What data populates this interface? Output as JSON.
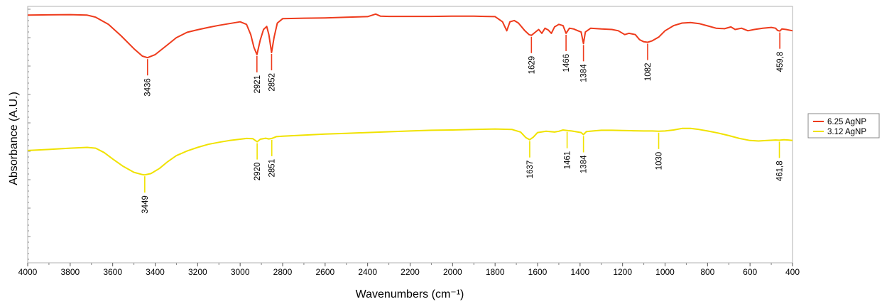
{
  "chart_data": {
    "type": "line",
    "xlabel": "Wavenumbers (cm⁻¹)",
    "ylabel": "Absorbance (A.U.)",
    "xlim": [
      4000,
      400
    ],
    "x_reversed": true,
    "x_ticks": [
      4000,
      3800,
      3600,
      3400,
      3200,
      3000,
      2800,
      2600,
      2400,
      2200,
      2000,
      1800,
      1600,
      1400,
      1200,
      1000,
      800,
      600,
      400
    ],
    "y_ticks_labeled": false,
    "ylim": [
      0,
      1
    ],
    "grid": false,
    "legend_position": "right",
    "series": [
      {
        "name": "6.25 AgNP",
        "color": "#ee3b1c",
        "points": [
          [
            4000,
            0.966
          ],
          [
            3900,
            0.967
          ],
          [
            3800,
            0.968
          ],
          [
            3720,
            0.966
          ],
          [
            3680,
            0.958
          ],
          [
            3620,
            0.93
          ],
          [
            3560,
            0.885
          ],
          [
            3500,
            0.835
          ],
          [
            3460,
            0.806
          ],
          [
            3436,
            0.8
          ],
          [
            3400,
            0.812
          ],
          [
            3350,
            0.845
          ],
          [
            3300,
            0.878
          ],
          [
            3250,
            0.899
          ],
          [
            3200,
            0.909
          ],
          [
            3150,
            0.918
          ],
          [
            3100,
            0.926
          ],
          [
            3050,
            0.933
          ],
          [
            3000,
            0.94
          ],
          [
            2970,
            0.93
          ],
          [
            2950,
            0.89
          ],
          [
            2935,
            0.84
          ],
          [
            2921,
            0.812
          ],
          [
            2905,
            0.87
          ],
          [
            2890,
            0.91
          ],
          [
            2875,
            0.922
          ],
          [
            2865,
            0.89
          ],
          [
            2852,
            0.82
          ],
          [
            2840,
            0.88
          ],
          [
            2825,
            0.935
          ],
          [
            2800,
            0.952
          ],
          [
            2700,
            0.954
          ],
          [
            2600,
            0.955
          ],
          [
            2500,
            0.958
          ],
          [
            2400,
            0.96
          ],
          [
            2362,
            0.97
          ],
          [
            2340,
            0.962
          ],
          [
            2300,
            0.961
          ],
          [
            2200,
            0.961
          ],
          [
            2100,
            0.961
          ],
          [
            2000,
            0.962
          ],
          [
            1900,
            0.962
          ],
          [
            1850,
            0.961
          ],
          [
            1800,
            0.96
          ],
          [
            1765,
            0.94
          ],
          [
            1745,
            0.905
          ],
          [
            1730,
            0.94
          ],
          [
            1710,
            0.945
          ],
          [
            1690,
            0.935
          ],
          [
            1660,
            0.905
          ],
          [
            1640,
            0.89
          ],
          [
            1629,
            0.887
          ],
          [
            1610,
            0.9
          ],
          [
            1595,
            0.91
          ],
          [
            1580,
            0.895
          ],
          [
            1565,
            0.915
          ],
          [
            1550,
            0.908
          ],
          [
            1535,
            0.895
          ],
          [
            1520,
            0.92
          ],
          [
            1500,
            0.93
          ],
          [
            1480,
            0.925
          ],
          [
            1466,
            0.895
          ],
          [
            1450,
            0.915
          ],
          [
            1430,
            0.912
          ],
          [
            1410,
            0.905
          ],
          [
            1395,
            0.9
          ],
          [
            1384,
            0.855
          ],
          [
            1375,
            0.9
          ],
          [
            1350,
            0.915
          ],
          [
            1300,
            0.912
          ],
          [
            1250,
            0.91
          ],
          [
            1220,
            0.905
          ],
          [
            1190,
            0.89
          ],
          [
            1170,
            0.895
          ],
          [
            1140,
            0.89
          ],
          [
            1120,
            0.87
          ],
          [
            1100,
            0.862
          ],
          [
            1082,
            0.86
          ],
          [
            1060,
            0.866
          ],
          [
            1030,
            0.88
          ],
          [
            1000,
            0.905
          ],
          [
            960,
            0.925
          ],
          [
            920,
            0.935
          ],
          [
            880,
            0.937
          ],
          [
            840,
            0.933
          ],
          [
            800,
            0.924
          ],
          [
            760,
            0.915
          ],
          [
            720,
            0.913
          ],
          [
            690,
            0.92
          ],
          [
            670,
            0.91
          ],
          [
            640,
            0.915
          ],
          [
            610,
            0.905
          ],
          [
            580,
            0.91
          ],
          [
            540,
            0.915
          ],
          [
            500,
            0.918
          ],
          [
            480,
            0.915
          ],
          [
            470,
            0.906
          ],
          [
            459.8,
            0.904
          ],
          [
            450,
            0.912
          ],
          [
            430,
            0.91
          ],
          [
            400,
            0.905
          ]
        ],
        "peaks": [
          {
            "x": 3436,
            "label": "3436"
          },
          {
            "x": 2921,
            "label": "2921"
          },
          {
            "x": 2852,
            "label": "2852"
          },
          {
            "x": 1629,
            "label": "1629"
          },
          {
            "x": 1466,
            "label": "1466"
          },
          {
            "x": 1384,
            "label": "1384"
          },
          {
            "x": 1082,
            "label": "1082"
          },
          {
            "x": 459.8,
            "label": "459,8"
          }
        ]
      },
      {
        "name": "3.12 AgNP",
        "color": "#f0e200",
        "points": [
          [
            4000,
            0.438
          ],
          [
            3900,
            0.442
          ],
          [
            3800,
            0.447
          ],
          [
            3720,
            0.45
          ],
          [
            3680,
            0.447
          ],
          [
            3640,
            0.43
          ],
          [
            3600,
            0.405
          ],
          [
            3550,
            0.376
          ],
          [
            3500,
            0.353
          ],
          [
            3460,
            0.344
          ],
          [
            3449,
            0.343
          ],
          [
            3420,
            0.348
          ],
          [
            3380,
            0.368
          ],
          [
            3340,
            0.395
          ],
          [
            3300,
            0.418
          ],
          [
            3250,
            0.436
          ],
          [
            3200,
            0.45
          ],
          [
            3150,
            0.462
          ],
          [
            3100,
            0.47
          ],
          [
            3050,
            0.477
          ],
          [
            3000,
            0.482
          ],
          [
            2970,
            0.485
          ],
          [
            2940,
            0.484
          ],
          [
            2920,
            0.472
          ],
          [
            2905,
            0.482
          ],
          [
            2880,
            0.486
          ],
          [
            2865,
            0.483
          ],
          [
            2851,
            0.485
          ],
          [
            2830,
            0.492
          ],
          [
            2800,
            0.494
          ],
          [
            2700,
            0.498
          ],
          [
            2600,
            0.502
          ],
          [
            2500,
            0.505
          ],
          [
            2400,
            0.508
          ],
          [
            2300,
            0.511
          ],
          [
            2200,
            0.514
          ],
          [
            2100,
            0.517
          ],
          [
            2000,
            0.518
          ],
          [
            1900,
            0.52
          ],
          [
            1800,
            0.522
          ],
          [
            1720,
            0.52
          ],
          [
            1680,
            0.51
          ],
          [
            1655,
            0.488
          ],
          [
            1637,
            0.48
          ],
          [
            1620,
            0.49
          ],
          [
            1600,
            0.508
          ],
          [
            1560,
            0.513
          ],
          [
            1520,
            0.51
          ],
          [
            1500,
            0.513
          ],
          [
            1480,
            0.518
          ],
          [
            1461,
            0.516
          ],
          [
            1440,
            0.514
          ],
          [
            1410,
            0.51
          ],
          [
            1395,
            0.508
          ],
          [
            1384,
            0.5
          ],
          [
            1370,
            0.512
          ],
          [
            1330,
            0.515
          ],
          [
            1300,
            0.517
          ],
          [
            1250,
            0.517
          ],
          [
            1200,
            0.516
          ],
          [
            1150,
            0.515
          ],
          [
            1100,
            0.514
          ],
          [
            1060,
            0.514
          ],
          [
            1030,
            0.513
          ],
          [
            1000,
            0.514
          ],
          [
            960,
            0.518
          ],
          [
            920,
            0.524
          ],
          [
            880,
            0.524
          ],
          [
            840,
            0.52
          ],
          [
            800,
            0.514
          ],
          [
            750,
            0.506
          ],
          [
            700,
            0.496
          ],
          [
            650,
            0.485
          ],
          [
            600,
            0.477
          ],
          [
            560,
            0.475
          ],
          [
            520,
            0.477
          ],
          [
            480,
            0.479
          ],
          [
            461.8,
            0.478
          ],
          [
            440,
            0.48
          ],
          [
            420,
            0.479
          ],
          [
            400,
            0.477
          ]
        ],
        "peaks": [
          {
            "x": 3449,
            "label": "3449"
          },
          {
            "x": 2920,
            "label": "2920"
          },
          {
            "x": 2851,
            "label": "2851"
          },
          {
            "x": 1637,
            "label": "1637"
          },
          {
            "x": 1461,
            "label": "1461"
          },
          {
            "x": 1384,
            "label": "1384"
          },
          {
            "x": 1030,
            "label": "1030"
          },
          {
            "x": 461.8,
            "label": "461,8"
          }
        ]
      }
    ]
  }
}
